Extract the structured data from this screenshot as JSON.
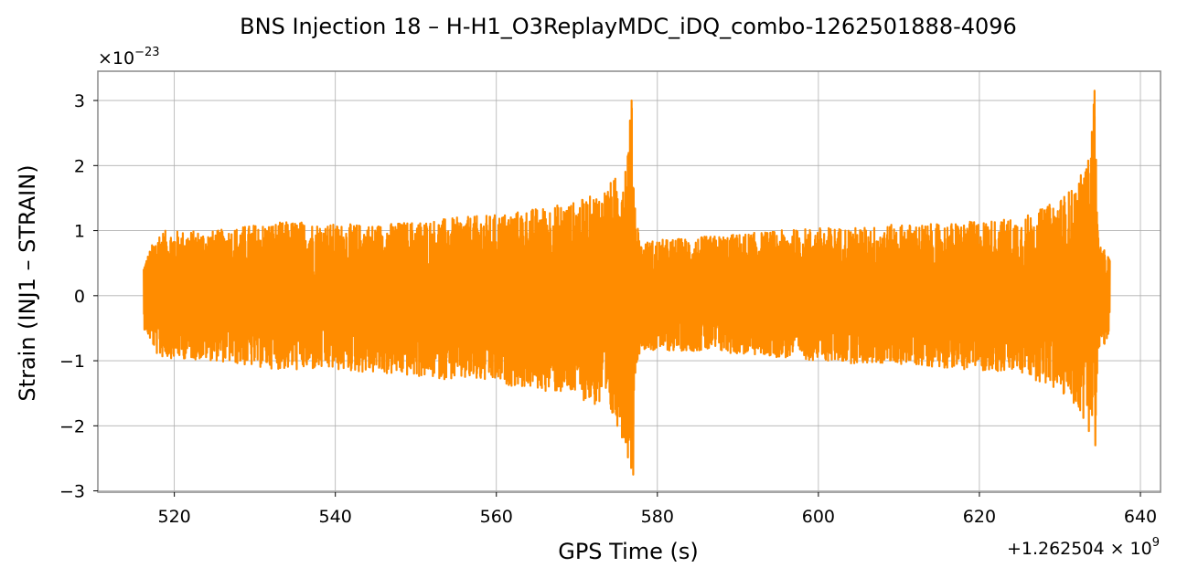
{
  "chart_data": {
    "type": "line",
    "title": "BNS Injection 18 – H-H1_O3ReplayMDC_iDQ_combo-1262501888-4096",
    "xlabel": "GPS Time (s)",
    "ylabel": "Strain (INJ1 – STRAIN)",
    "x_offset_label": "+1.262504 × 10",
    "x_offset_exponent": "9",
    "y_scale_label": "×10",
    "y_scale_exponent": "−23",
    "x_ticks": [
      520,
      540,
      560,
      580,
      600,
      620,
      640
    ],
    "x_tick_labels": [
      "520",
      "540",
      "560",
      "580",
      "600",
      "620",
      "640"
    ],
    "y_ticks": [
      -3,
      -2,
      -1,
      0,
      1,
      2,
      3
    ],
    "y_tick_labels": [
      "−3",
      "−2",
      "−1",
      "0",
      "1",
      "2",
      "3"
    ],
    "xlim": [
      510.5,
      642.5
    ],
    "ylim": [
      -3.02,
      3.45
    ],
    "grid": true,
    "line_color": "#ff8c00",
    "series": [
      {
        "x_start": 516.2,
        "x_end": 636.2,
        "envelope_x": [
          516.2,
          518,
          525,
          530,
          535,
          540,
          545,
          550,
          555,
          560,
          565,
          570,
          573,
          575,
          576,
          576.8,
          577.3,
          578,
          579,
          585,
          590,
          595,
          600,
          605,
          610,
          615,
          620,
          625,
          628,
          630,
          632,
          633.5,
          634.3,
          634.8,
          636.2
        ],
        "envelope_upper": [
          0.5,
          1.0,
          1.0,
          1.1,
          1.15,
          1.1,
          1.1,
          1.15,
          1.2,
          1.25,
          1.35,
          1.45,
          1.6,
          1.85,
          2.1,
          3.0,
          1.3,
          0.8,
          0.85,
          0.9,
          0.95,
          1.0,
          1.05,
          1.05,
          1.1,
          1.1,
          1.15,
          1.2,
          1.35,
          1.5,
          1.7,
          2.1,
          3.15,
          0.8,
          0.6
        ],
        "envelope_lower": [
          -0.5,
          -0.95,
          -1.0,
          -1.1,
          -1.15,
          -1.15,
          -1.2,
          -1.25,
          -1.3,
          -1.35,
          -1.45,
          -1.55,
          -1.75,
          -2.0,
          -2.3,
          -2.75,
          -1.1,
          -0.8,
          -0.85,
          -0.85,
          -0.9,
          -0.95,
          -1.0,
          -1.05,
          -1.05,
          -1.1,
          -1.15,
          -1.2,
          -1.35,
          -1.5,
          -1.7,
          -2.05,
          -2.3,
          -0.95,
          -0.6
        ]
      }
    ]
  }
}
